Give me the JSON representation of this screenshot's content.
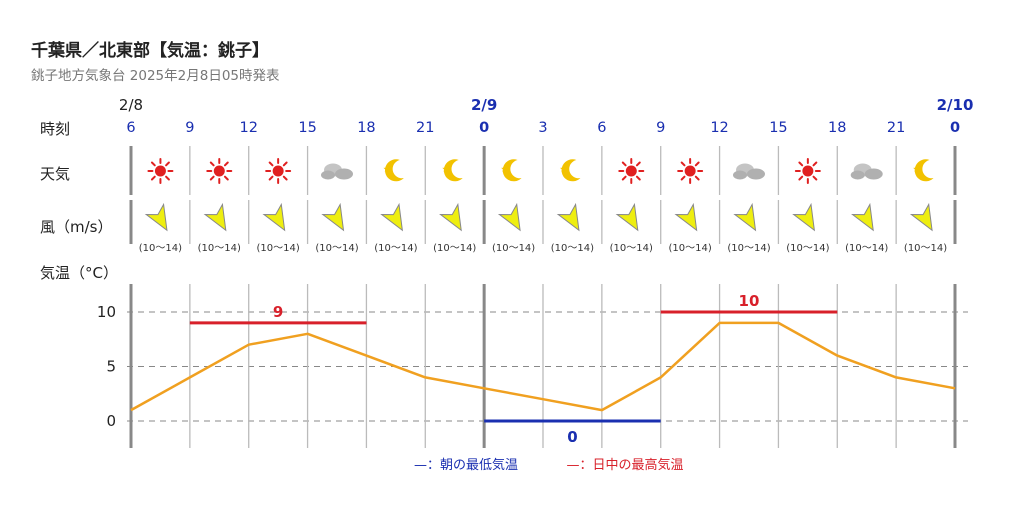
{
  "header": {
    "title": "千葉県／北東部【気温：銚子】",
    "subtitle": "銚子地方気象台 2025年2月8日05時発表"
  },
  "rows": {
    "time_label": "時刻",
    "weather_label": "天気",
    "wind_label": "風（m/s）",
    "temp_label": "気温（°C）"
  },
  "timeline": {
    "hours": [
      "6",
      "9",
      "12",
      "15",
      "18",
      "21",
      "0",
      "3",
      "6",
      "9",
      "12",
      "15",
      "18",
      "21",
      "0"
    ],
    "date_marks": [
      {
        "index": 0,
        "label": "2/8"
      },
      {
        "index": 6,
        "label": "2/9"
      },
      {
        "index": 14,
        "label": "2/10"
      }
    ]
  },
  "weather_icons": [
    "sun-icon",
    "sun-icon",
    "sun-icon",
    "cloud-icon",
    "moon-icon",
    "moon-icon",
    "moon-icon",
    "moon-icon",
    "sun-icon",
    "sun-icon",
    "cloud-icon",
    "sun-icon",
    "cloud-icon",
    "moon-icon"
  ],
  "wind": {
    "direction": "NNE",
    "ranges": [
      "(10〜14)",
      "(10〜14)",
      "(10〜14)",
      "(10〜14)",
      "(10〜14)",
      "(10〜14)",
      "(10〜14)",
      "(10〜14)",
      "(10〜14)",
      "(10〜14)",
      "(10〜14)",
      "(10〜14)",
      "(10〜14)",
      "(10〜14)"
    ]
  },
  "colors": {
    "line": "#f0a020",
    "max": "#d8202a",
    "min": "#1a2fb0",
    "date": "#1a2fb0",
    "sun": "#e02020",
    "moon": "#f2c200",
    "cloud": "#b0b0b0",
    "arrow": "#eeee10"
  },
  "chart_data": {
    "type": "line",
    "x": [
      "2/8 6",
      "9",
      "12",
      "15",
      "18",
      "21",
      "2/9 0",
      "3",
      "6",
      "9",
      "12",
      "15",
      "18",
      "21",
      "2/10 0"
    ],
    "series": [
      {
        "values": [
          1,
          4,
          7,
          8,
          6,
          4,
          3,
          2,
          1,
          4,
          9,
          9,
          6,
          4,
          3
        ]
      }
    ],
    "yticks": [
      0,
      5,
      10
    ],
    "ylim": [
      -2.5,
      12.5
    ],
    "grid": true,
    "max_temps": [
      {
        "from_index": 1,
        "to_index": 4,
        "value": 9,
        "label": "9"
      },
      {
        "from_index": 9,
        "to_index": 12,
        "value": 10,
        "label": "10"
      }
    ],
    "min_temps": [
      {
        "from_index": 6,
        "to_index": 9,
        "value": 0,
        "label": "0"
      }
    ]
  },
  "legend": {
    "min_label": "—：朝の最低気温",
    "max_label": "—：日中の最高気温"
  }
}
